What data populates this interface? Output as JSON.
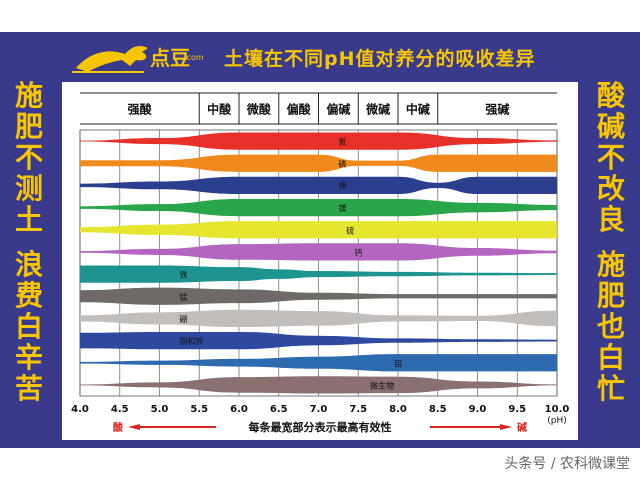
{
  "header": {
    "logo_text": "点豆",
    "logo_sub": ".com",
    "title": "土壤在不同pH值对养分的吸收差异"
  },
  "side_left": [
    "施",
    "肥",
    "不",
    "测",
    "土",
    "",
    "浪",
    "费",
    "白",
    "辛",
    "苦"
  ],
  "side_right": [
    "酸",
    "碱",
    "不",
    "改",
    "良",
    "",
    "施",
    "肥",
    "也",
    "白",
    "忙"
  ],
  "colors": {
    "frame": "#3a3a8c",
    "accent": "#f7c600",
    "arrow_red": "#d7261f"
  },
  "chart_data": {
    "type": "area",
    "title": "土壤在不同pH值对养分的吸收差异",
    "xlabel": "每条最宽部分表示最高有效性",
    "x_unit": "(pH)",
    "xlim": [
      4.0,
      10.0
    ],
    "x_ticks": [
      "4.0",
      "4.5",
      "5.0",
      "5.5",
      "6.0",
      "6.5",
      "7.0",
      "7.5",
      "8.0",
      "8.5",
      "9.0",
      "9.5",
      "10.0"
    ],
    "arrow_left_label": "酸",
    "arrow_right_label": "碱",
    "grid": true,
    "header_bands": [
      {
        "label": "强酸",
        "from": 4.0,
        "to": 5.5
      },
      {
        "label": "中酸",
        "from": 5.5,
        "to": 6.0
      },
      {
        "label": "微酸",
        "from": 6.0,
        "to": 6.5
      },
      {
        "label": "偏酸",
        "from": 6.5,
        "to": 7.0
      },
      {
        "label": "偏碱",
        "from": 7.0,
        "to": 7.5
      },
      {
        "label": "微碱",
        "from": 7.5,
        "to": 8.0
      },
      {
        "label": "中碱",
        "from": 8.0,
        "to": 8.5
      },
      {
        "label": "强碱",
        "from": 8.5,
        "to": 10.0
      }
    ],
    "series": [
      {
        "name": "氮",
        "color": "#e8302a",
        "label_at": 7.3,
        "x": [
          4.0,
          5.0,
          6.0,
          7.0,
          8.0,
          9.0,
          10.0
        ],
        "thickness": [
          0.05,
          0.35,
          1.0,
          1.0,
          1.0,
          0.35,
          0.08
        ]
      },
      {
        "name": "磷",
        "color": "#f08a1c",
        "label_at": 7.3,
        "x": [
          4.0,
          5.0,
          6.0,
          7.0,
          7.5,
          8.0,
          8.5,
          9.0,
          10.0
        ],
        "thickness": [
          0.35,
          0.35,
          1.0,
          1.0,
          0.3,
          0.3,
          1.0,
          1.0,
          1.0
        ]
      },
      {
        "name": "钾",
        "color": "#2c3f8e",
        "label_at": 7.3,
        "x": [
          4.0,
          5.0,
          6.0,
          7.0,
          7.5,
          8.0,
          8.5,
          9.0,
          10.0
        ],
        "thickness": [
          0.2,
          0.45,
          1.0,
          1.0,
          1.0,
          1.0,
          0.3,
          1.0,
          1.0
        ]
      },
      {
        "name": "镁",
        "color": "#2aa64a",
        "label_at": 7.3,
        "x": [
          4.0,
          5.0,
          6.0,
          7.0,
          8.0,
          9.0,
          10.0
        ],
        "thickness": [
          0.15,
          0.4,
          1.0,
          1.0,
          1.0,
          0.55,
          0.3
        ]
      },
      {
        "name": "硫",
        "color": "#e6e631",
        "label_at": 7.4,
        "x": [
          4.0,
          5.0,
          6.0,
          7.0,
          8.0,
          9.0,
          10.0
        ],
        "thickness": [
          0.3,
          0.6,
          1.0,
          1.0,
          1.0,
          1.0,
          1.0
        ]
      },
      {
        "name": "钙",
        "color": "#b366bf",
        "label_at": 7.5,
        "x": [
          4.0,
          5.0,
          6.0,
          7.0,
          8.0,
          9.0,
          10.0
        ],
        "thickness": [
          0.1,
          0.35,
          0.9,
          1.0,
          1.0,
          0.45,
          0.15
        ]
      },
      {
        "name": "铁",
        "color": "#1e9490",
        "label_at": 5.3,
        "x": [
          4.0,
          5.0,
          6.0,
          6.5,
          7.0,
          8.0,
          9.0,
          10.0
        ],
        "thickness": [
          1.0,
          1.0,
          0.8,
          0.55,
          0.35,
          0.25,
          0.15,
          0.1
        ]
      },
      {
        "name": "锰",
        "color": "#6f6a68",
        "label_at": 5.3,
        "x": [
          4.0,
          5.0,
          6.0,
          7.0,
          8.0,
          9.0,
          10.0
        ],
        "thickness": [
          0.7,
          1.0,
          0.8,
          0.4,
          0.25,
          0.25,
          0.25
        ]
      },
      {
        "name": "硼",
        "color": "#c2bebb",
        "label_at": 5.3,
        "x": [
          4.0,
          5.0,
          6.0,
          7.0,
          8.0,
          9.0,
          10.0
        ],
        "thickness": [
          0.35,
          0.7,
          1.0,
          0.85,
          0.35,
          0.3,
          0.9
        ]
      },
      {
        "name": "铜和锌",
        "color": "#2e4aa0",
        "label_at": 5.4,
        "x": [
          4.0,
          5.0,
          6.0,
          7.0,
          8.0,
          9.0,
          10.0
        ],
        "thickness": [
          0.9,
          1.0,
          1.0,
          0.55,
          0.25,
          0.15,
          0.1
        ]
      },
      {
        "name": "钼",
        "color": "#2e6ab0",
        "label_at": 8.0,
        "x": [
          4.0,
          5.0,
          6.0,
          7.0,
          8.0,
          9.0,
          10.0
        ],
        "thickness": [
          0.1,
          0.25,
          0.45,
          0.7,
          1.0,
          1.0,
          1.0
        ]
      },
      {
        "name": "微生物",
        "color": "#8a7070",
        "label_at": 7.8,
        "x": [
          4.0,
          5.0,
          6.0,
          7.0,
          8.0,
          9.0,
          10.0
        ],
        "thickness": [
          0.05,
          0.3,
          0.9,
          1.0,
          0.95,
          0.4,
          0.05
        ]
      }
    ]
  },
  "footer": {
    "credit": "头条号 / 农科微课堂"
  }
}
